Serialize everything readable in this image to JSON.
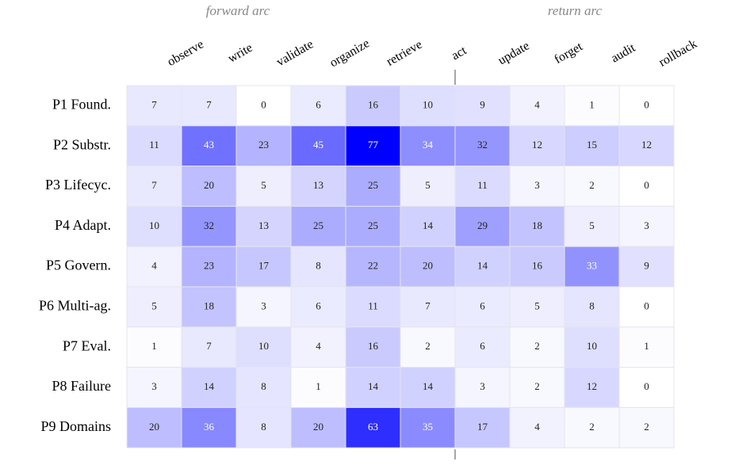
{
  "chart_data": {
    "type": "heatmap",
    "colors": [
      "#ffffff",
      "#0000ff"
    ],
    "x_categories": [
      "observe",
      "write",
      "validate",
      "organize",
      "retrieve",
      "act",
      "update",
      "forget",
      "audit",
      "rollback"
    ],
    "y_categories": [
      "P1 Found.",
      "P2 Substr.",
      "P3 Lifecyc.",
      "P4 Adapt.",
      "P5 Govern.",
      "P6 Multi-ag.",
      "P7 Eval.",
      "P8 Failure",
      "P9 Domains"
    ],
    "values": [
      [
        7,
        7,
        0,
        6,
        16,
        10,
        9,
        4,
        1,
        0
      ],
      [
        11,
        43,
        23,
        45,
        77,
        34,
        32,
        12,
        15,
        12
      ],
      [
        7,
        20,
        5,
        13,
        25,
        5,
        11,
        3,
        2,
        0
      ],
      [
        10,
        32,
        13,
        25,
        25,
        14,
        29,
        18,
        5,
        3
      ],
      [
        4,
        23,
        17,
        8,
        22,
        20,
        14,
        16,
        33,
        9
      ],
      [
        5,
        18,
        3,
        6,
        11,
        7,
        6,
        5,
        8,
        0
      ],
      [
        1,
        7,
        10,
        4,
        16,
        2,
        6,
        2,
        10,
        1
      ],
      [
        3,
        14,
        8,
        1,
        14,
        14,
        3,
        2,
        12,
        0
      ],
      [
        20,
        36,
        8,
        20,
        63,
        35,
        17,
        4,
        2,
        2
      ]
    ],
    "annotations": [
      "forward arc",
      "return arc"
    ]
  }
}
